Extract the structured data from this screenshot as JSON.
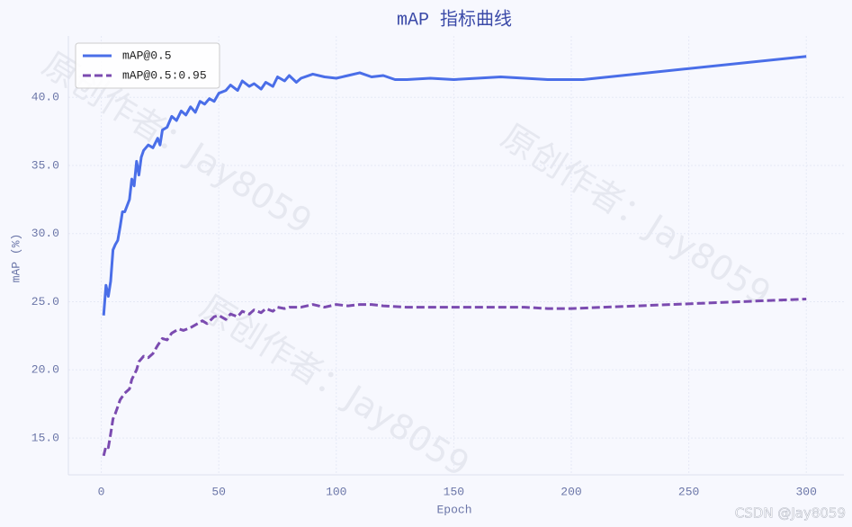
{
  "chart_data": {
    "type": "line",
    "title": "mAP 指标曲线",
    "xlabel": "Epoch",
    "ylabel": "mAP (%)",
    "xlim": [
      -14,
      316
    ],
    "ylim": [
      12.3,
      44.5
    ],
    "xticks": [
      0,
      50,
      100,
      150,
      200,
      250,
      300
    ],
    "yticks": [
      {
        "value": 15,
        "label": "15.0"
      },
      {
        "value": 20,
        "label": "20.0"
      },
      {
        "value": 25,
        "label": "25.0"
      },
      {
        "value": 30,
        "label": "30.0"
      },
      {
        "value": 35,
        "label": "35.0"
      },
      {
        "value": 40,
        "label": "40.0"
      }
    ],
    "grid": true,
    "legend": "upper left",
    "series": [
      {
        "name": "mAP@0.5",
        "color": "#4a6ee8",
        "dash": false,
        "x": [
          1,
          2,
          3,
          4,
          5,
          6,
          7,
          8,
          9,
          10,
          12,
          13,
          14,
          15,
          16,
          17,
          18,
          20,
          22,
          24,
          25,
          26,
          28,
          30,
          32,
          34,
          36,
          38,
          40,
          42,
          44,
          46,
          48,
          50,
          53,
          55,
          58,
          60,
          63,
          65,
          68,
          70,
          73,
          75,
          78,
          80,
          83,
          85,
          90,
          95,
          100,
          105,
          110,
          115,
          120,
          125,
          130,
          140,
          150,
          160,
          170,
          180,
          190,
          200,
          205,
          300
        ],
        "values": [
          24.0,
          26.2,
          25.4,
          26.5,
          28.8,
          29.2,
          29.5,
          30.5,
          31.6,
          31.6,
          32.5,
          34.0,
          33.5,
          35.3,
          34.3,
          35.6,
          36.1,
          36.5,
          36.3,
          37.0,
          36.5,
          37.6,
          37.8,
          38.6,
          38.3,
          39.0,
          38.7,
          39.3,
          38.9,
          39.7,
          39.5,
          39.9,
          39.7,
          40.3,
          40.5,
          40.9,
          40.5,
          41.2,
          40.8,
          41.0,
          40.6,
          41.1,
          40.8,
          41.5,
          41.2,
          41.6,
          41.1,
          41.4,
          41.7,
          41.5,
          41.4,
          41.6,
          41.8,
          41.5,
          41.6,
          41.3,
          41.3,
          41.4,
          41.3,
          41.4,
          41.5,
          41.4,
          41.3,
          41.3,
          41.3,
          43.0
        ]
      },
      {
        "name": "mAP@0.5:0.95",
        "color": "#7b4bb0",
        "dash": true,
        "x": [
          1,
          2,
          3,
          4,
          5,
          6,
          7,
          8,
          10,
          12,
          13,
          15,
          16,
          18,
          20,
          22,
          24,
          26,
          28,
          30,
          33,
          35,
          38,
          40,
          43,
          45,
          48,
          50,
          53,
          55,
          58,
          60,
          63,
          65,
          68,
          70,
          73,
          75,
          78,
          80,
          85,
          90,
          95,
          100,
          105,
          110,
          115,
          120,
          130,
          140,
          150,
          160,
          170,
          180,
          190,
          200,
          300
        ],
        "values": [
          13.7,
          14.4,
          14.3,
          15.3,
          16.4,
          16.8,
          17.3,
          17.8,
          18.3,
          18.6,
          19.3,
          20.0,
          20.6,
          21.0,
          20.9,
          21.2,
          21.8,
          22.3,
          22.2,
          22.7,
          23.0,
          22.9,
          23.1,
          23.3,
          23.6,
          23.4,
          23.9,
          24.0,
          23.7,
          24.1,
          23.9,
          24.3,
          24.1,
          24.4,
          24.2,
          24.5,
          24.3,
          24.6,
          24.5,
          24.6,
          24.6,
          24.8,
          24.6,
          24.8,
          24.7,
          24.8,
          24.8,
          24.7,
          24.6,
          24.6,
          24.6,
          24.6,
          24.6,
          24.6,
          24.5,
          24.5,
          25.2
        ]
      }
    ],
    "watermarks": [
      "原创作者：Jay8059",
      "原创作者：Jay8059",
      "原创作者：Jay8059"
    ],
    "credit": "CSDN @Jay8059"
  }
}
